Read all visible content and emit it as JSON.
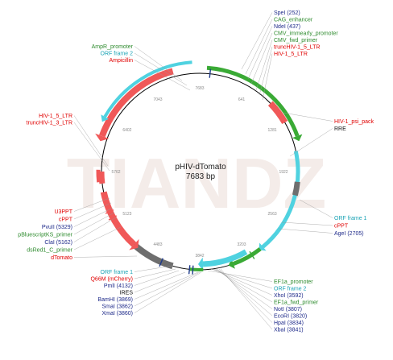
{
  "plasmid": {
    "name": "pHIV-dTomato",
    "size_label": "7683 bp"
  },
  "watermark": {
    "text": "TIANDZ"
  },
  "ticks": [
    "7683",
    "641",
    "1281",
    "1922",
    "2563",
    "3203",
    "3842",
    "4483",
    "5123",
    "5762",
    "6402",
    "7043"
  ],
  "colors": {
    "backbone": "#000000",
    "promoter": "#3aaa35",
    "orf": "#4fd2e0",
    "feature_red": "#f05858",
    "grey": "#6e6e6e",
    "site_blue": "#1e3a8a",
    "label_red": "#e00000",
    "label_green": "#2e8b2e",
    "label_blue": "#1e2a8a",
    "label_black": "#111111",
    "watermark": "#f4ece9"
  },
  "labels": {
    "top_right": [
      {
        "text": "SpeI  (252)",
        "color": "#1e2a8a"
      },
      {
        "text": "CAG_enhancer",
        "color": "#2e8b2e"
      },
      {
        "text": "NdeI  (437)",
        "color": "#1e2a8a"
      },
      {
        "text": "CMV_immearly_promoter",
        "color": "#2e8b2e"
      },
      {
        "text": "CMV_fwd_primer",
        "color": "#2e8b2e"
      },
      {
        "text": "truncHIV-1_5_LTR",
        "color": "#e00000"
      },
      {
        "text": "HIV-1_5_LTR",
        "color": "#e00000"
      }
    ],
    "top_left": [
      {
        "text": "AmpR_promoter",
        "color": "#2e8b2e"
      },
      {
        "text": "ORF frame 2",
        "color": "#1aa3b5"
      },
      {
        "text": "Ampicillin",
        "color": "#e00000"
      }
    ],
    "left_upper": [
      {
        "text": "HIV-1_5_LTR",
        "color": "#e00000"
      },
      {
        "text": "truncHIV-1_3_LTR",
        "color": "#e00000"
      }
    ],
    "right_upper": [
      {
        "text": "HIV-1_psi_pack",
        "color": "#e00000"
      },
      {
        "text": "RRE",
        "color": "#111111"
      }
    ],
    "right_lower": [
      {
        "text": "ORF frame 1",
        "color": "#1aa3b5"
      },
      {
        "text": "cPPT",
        "color": "#e00000"
      },
      {
        "text": "AgeI  (2705)",
        "color": "#1e2a8a"
      }
    ],
    "left_lower": [
      {
        "text": "U3PPT",
        "color": "#e00000"
      },
      {
        "text": "cPPT",
        "color": "#e00000"
      },
      {
        "text": "PvuII  (5329)",
        "color": "#1e2a8a"
      },
      {
        "text": "pBluescriptKS_primer",
        "color": "#2e8b2e"
      },
      {
        "text": "ClaI  (5162)",
        "color": "#1e2a8a"
      },
      {
        "text": "dsRed1_C_primer",
        "color": "#2e8b2e"
      },
      {
        "text": "dTomato",
        "color": "#e00000"
      }
    ],
    "bottom_left": [
      {
        "text": "ORF frame 1",
        "color": "#1aa3b5"
      },
      {
        "text": "Q66M (mCherry)",
        "color": "#e00000"
      },
      {
        "text": "PmlI  (4132)",
        "color": "#1e2a8a"
      },
      {
        "text": "IRES",
        "color": "#111111"
      },
      {
        "text": "BamHI  (3869)",
        "color": "#1e2a8a"
      },
      {
        "text": "SmaI  (3862)",
        "color": "#1e2a8a"
      },
      {
        "text": "XmaI  (3860)",
        "color": "#1e2a8a"
      }
    ],
    "bottom_right": [
      {
        "text": "EF1a_promoter",
        "color": "#2e8b2e"
      },
      {
        "text": "ORF frame 2",
        "color": "#1aa3b5"
      },
      {
        "text": "XhoI  (3592)",
        "color": "#1e2a8a"
      },
      {
        "text": "EF1a_fwd_primer",
        "color": "#2e8b2e"
      },
      {
        "text": "NotI  (3807)",
        "color": "#1e2a8a"
      },
      {
        "text": "EcoRI  (3820)",
        "color": "#1e2a8a"
      },
      {
        "text": "HpaI  (3834)",
        "color": "#1e2a8a"
      },
      {
        "text": "XbaI  (3841)",
        "color": "#1e2a8a"
      }
    ]
  }
}
